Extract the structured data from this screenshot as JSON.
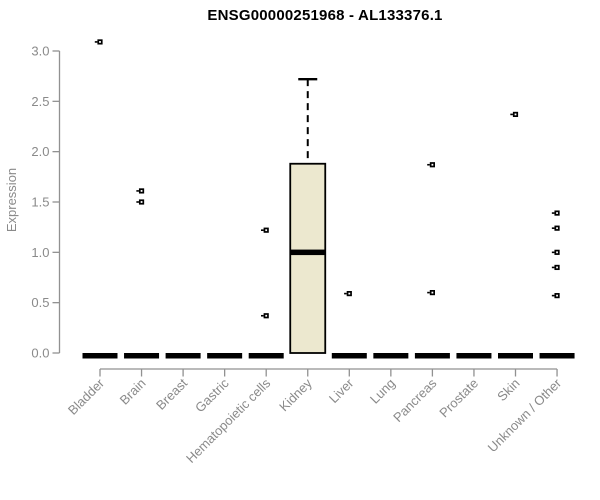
{
  "chart_data": {
    "type": "boxplot",
    "title": "ENSG00000251968 - AL133376.1",
    "ylabel": "Expression",
    "xlabel": "",
    "ylim": [
      0,
      3.0
    ],
    "yticks": [
      "0.0",
      "0.5",
      "1.0",
      "1.5",
      "2.0",
      "2.5",
      "3.0"
    ],
    "ytick_values": [
      0,
      0.5,
      1.0,
      1.5,
      2.0,
      2.5,
      3.0
    ],
    "grid": false,
    "legend": null,
    "categories": [
      "Bladder",
      "Brain",
      "Breast",
      "Gastric",
      "Hematopoietic cells",
      "Kidney",
      "Liver",
      "Lung",
      "Pancreas",
      "Prostate",
      "Skin",
      "Unknown / Other"
    ],
    "boxes": [
      {
        "category": "Bladder",
        "q1": 0,
        "median": 0,
        "q3": 0,
        "whisker_low": 0,
        "whisker_high": 0,
        "outliers": [
          3.09
        ]
      },
      {
        "category": "Brain",
        "q1": 0,
        "median": 0,
        "q3": 0,
        "whisker_low": 0,
        "whisker_high": 0,
        "outliers": [
          1.61,
          1.5
        ]
      },
      {
        "category": "Breast",
        "q1": 0,
        "median": 0,
        "q3": 0,
        "whisker_low": 0,
        "whisker_high": 0,
        "outliers": []
      },
      {
        "category": "Gastric",
        "q1": 0,
        "median": 0,
        "q3": 0,
        "whisker_low": 0,
        "whisker_high": 0,
        "outliers": []
      },
      {
        "category": "Hematopoietic cells",
        "q1": 0,
        "median": 0,
        "q3": 0,
        "whisker_low": 0,
        "whisker_high": 0,
        "outliers": [
          1.22,
          0.37
        ]
      },
      {
        "category": "Kidney",
        "q1": 0,
        "median": 1.0,
        "q3": 1.88,
        "whisker_low": 0,
        "whisker_high": 2.72,
        "outliers": []
      },
      {
        "category": "Liver",
        "q1": 0,
        "median": 0,
        "q3": 0,
        "whisker_low": 0,
        "whisker_high": 0,
        "outliers": [
          0.59
        ]
      },
      {
        "category": "Lung",
        "q1": 0,
        "median": 0,
        "q3": 0,
        "whisker_low": 0,
        "whisker_high": 0,
        "outliers": []
      },
      {
        "category": "Pancreas",
        "q1": 0,
        "median": 0,
        "q3": 0,
        "whisker_low": 0,
        "whisker_high": 0,
        "outliers": [
          1.87,
          0.6
        ]
      },
      {
        "category": "Prostate",
        "q1": 0,
        "median": 0,
        "q3": 0,
        "whisker_low": 0,
        "whisker_high": 0,
        "outliers": []
      },
      {
        "category": "Skin",
        "q1": 0,
        "median": 0,
        "q3": 0,
        "whisker_low": 0,
        "whisker_high": 0,
        "outliers": [
          2.37
        ]
      },
      {
        "category": "Unknown / Other",
        "q1": 0,
        "median": 0,
        "q3": 0,
        "whisker_low": 0,
        "whisker_high": 0,
        "outliers": [
          1.39,
          1.24,
          1.0,
          0.85,
          0.57
        ]
      }
    ],
    "colors": {
      "box_fill": "#ECE8CF",
      "box_stroke": "#000000",
      "median": "#000000",
      "whisker": "#000000",
      "outlier": "#000000",
      "axis_line": "#919191",
      "label_text": "#8A8A8A",
      "title_text": "#000000",
      "background": "#FFFFFF"
    }
  }
}
